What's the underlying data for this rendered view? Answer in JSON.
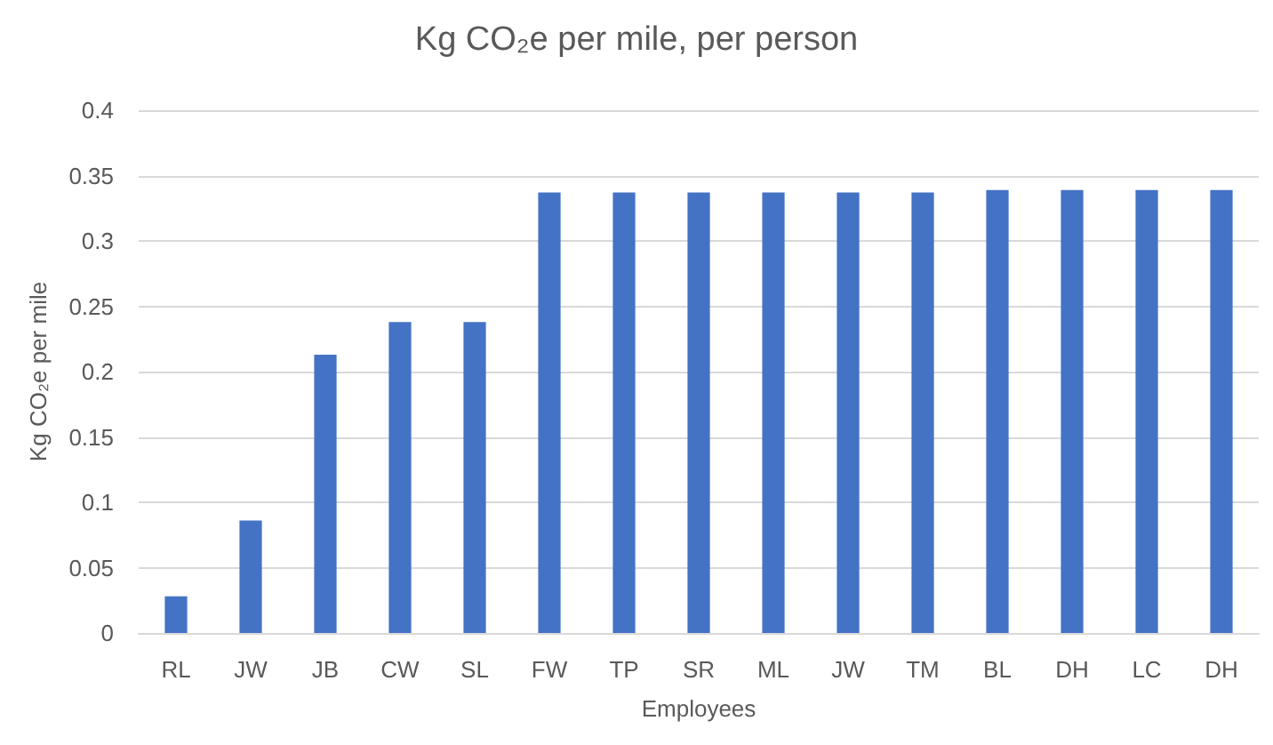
{
  "chart_data": {
    "type": "bar",
    "title": "Kg CO₂e per mile, per person",
    "xlabel": "Employees",
    "ylabel": "Kg CO₂e per mile",
    "categories": [
      "RL",
      "JW",
      "JB",
      "CW",
      "SL",
      "FW",
      "TP",
      "SR",
      "ML",
      "JW",
      "TM",
      "BL",
      "DH",
      "LC",
      "DH"
    ],
    "values": [
      0.028,
      0.086,
      0.213,
      0.238,
      0.238,
      0.337,
      0.337,
      0.337,
      0.337,
      0.337,
      0.337,
      0.339,
      0.339,
      0.339,
      0.339
    ],
    "color": "#4472c4",
    "ylim": [
      0,
      0.4
    ],
    "yticks": [
      0,
      0.05,
      0.1,
      0.15,
      0.2,
      0.25,
      0.3,
      0.35,
      0.4
    ],
    "grid": "y"
  }
}
